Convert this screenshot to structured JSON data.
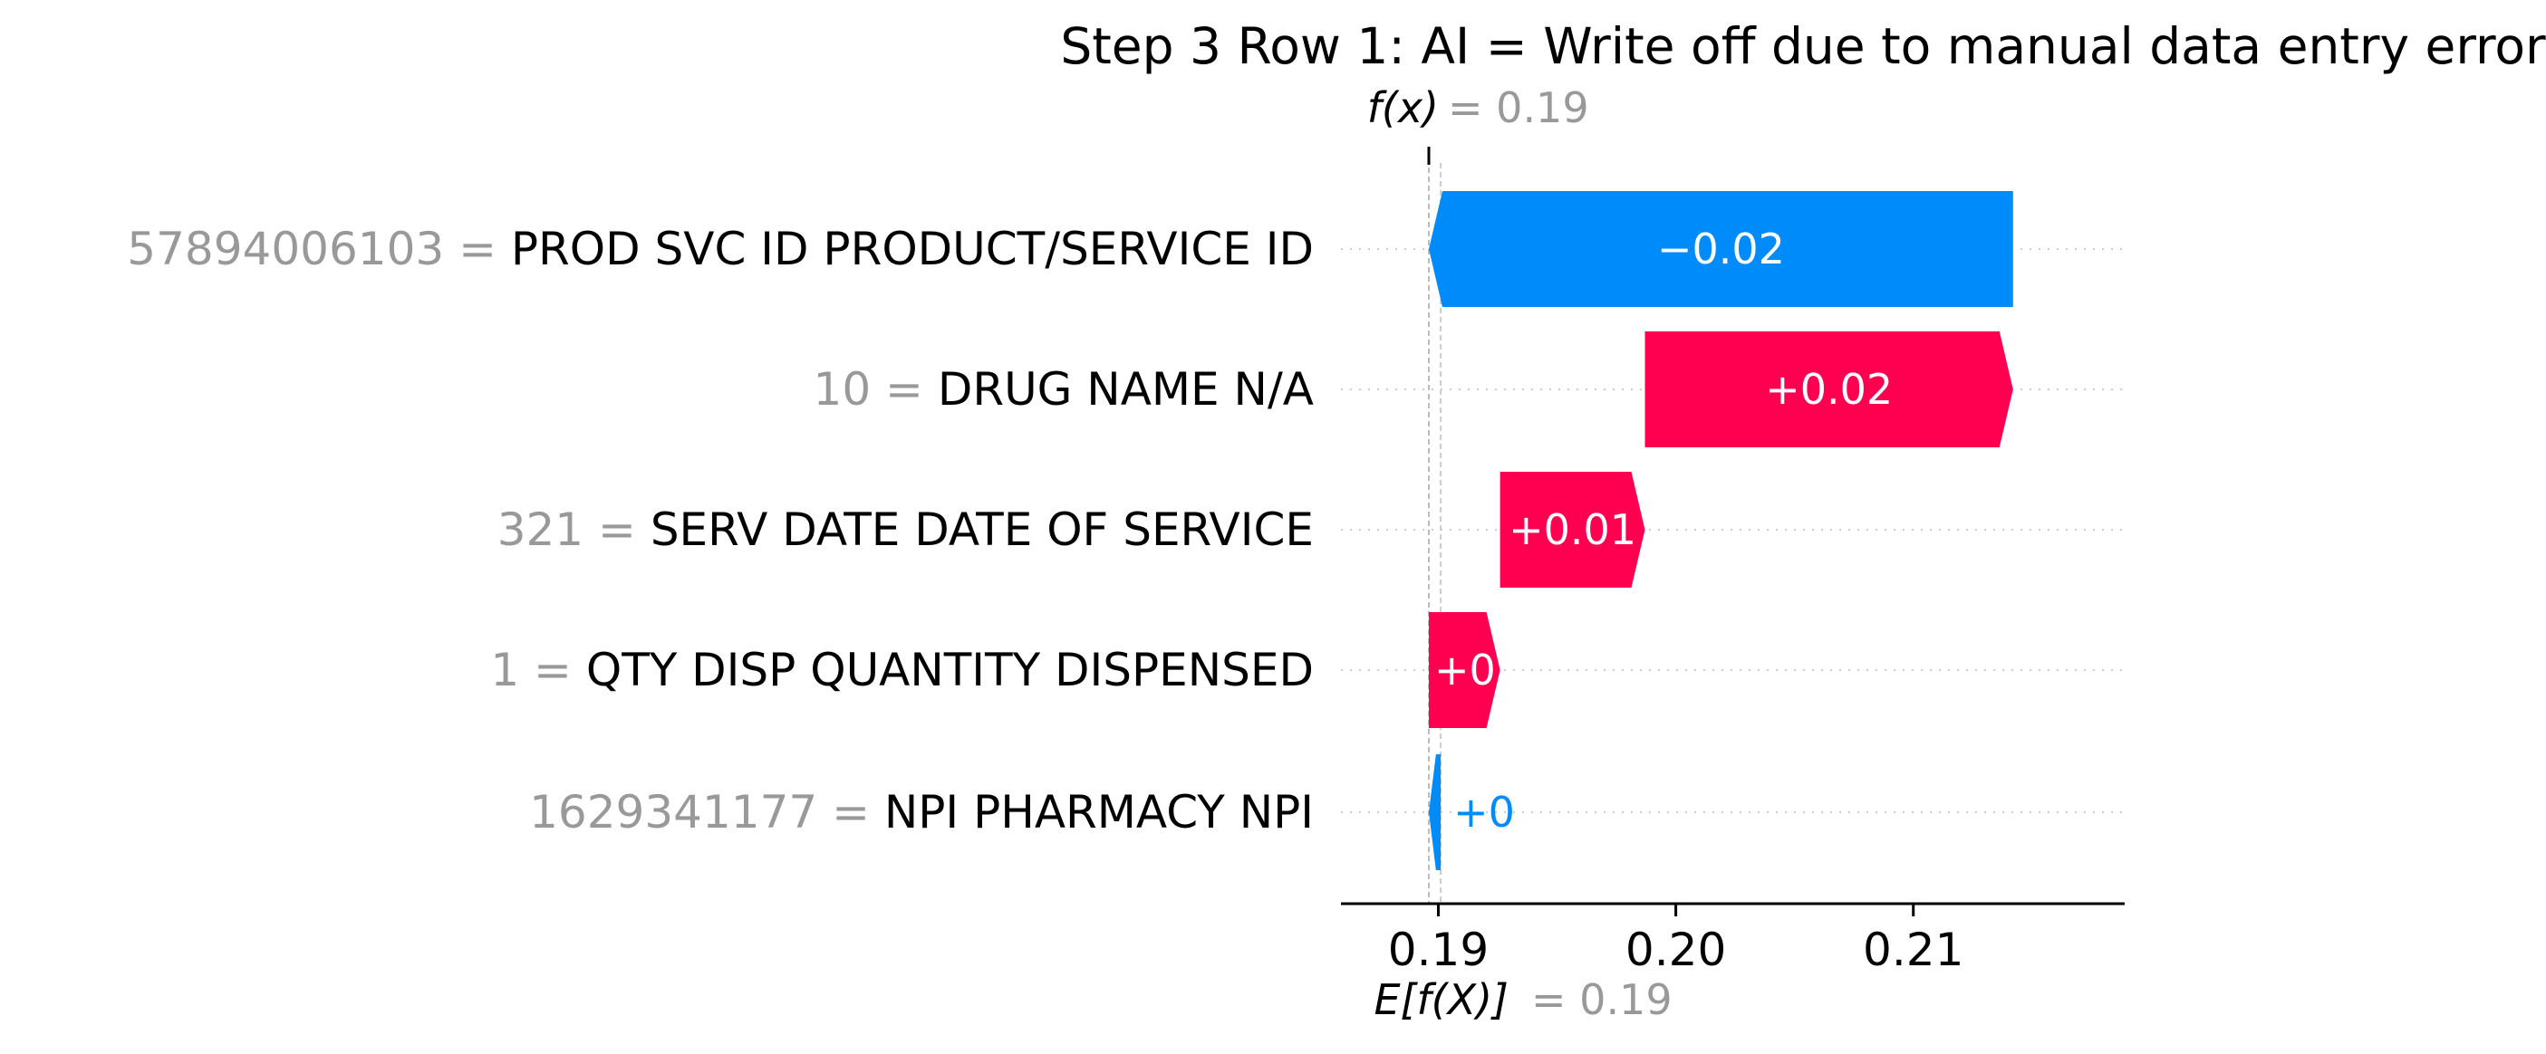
{
  "chart_data": {
    "type": "waterfall",
    "title": "Step 3 Row 1: AI = Write off due to manual data entry error",
    "fx": {
      "label": "f(x)",
      "value": "0.19"
    },
    "base": {
      "label": "E[f(X)]",
      "value": "0.19"
    },
    "base_value": 0.1901,
    "features": [
      {
        "value": "57894006103",
        "name": "PROD SVC ID PRODUCT/SERVICE ID",
        "contribution": -0.0246,
        "label": "−0.02"
      },
      {
        "value": "10",
        "name": "DRUG NAME N/A",
        "contribution": 0.0155,
        "label": "+0.02"
      },
      {
        "value": "321",
        "name": "SERV DATE DATE OF SERVICE",
        "contribution": 0.0061,
        "label": "+0.01"
      },
      {
        "value": "1",
        "name": "QTY DISP QUANTITY DISPENSED",
        "contribution": 0.003,
        "label": "+0"
      },
      {
        "value": "1629341177",
        "name": "NPI PHARMACY NPI",
        "contribution": -0.0005,
        "label": "+0"
      }
    ],
    "x_ticks": [
      {
        "value": 0.19,
        "label": "0.19"
      },
      {
        "value": 0.2,
        "label": "0.20"
      },
      {
        "value": 0.21,
        "label": "0.21"
      }
    ],
    "xlim": [
      0.1859,
      0.2189
    ],
    "colors": {
      "positive": "#ff0051",
      "negative": "#008bfb",
      "value_text": "#999999",
      "label_text": "#000000"
    }
  }
}
